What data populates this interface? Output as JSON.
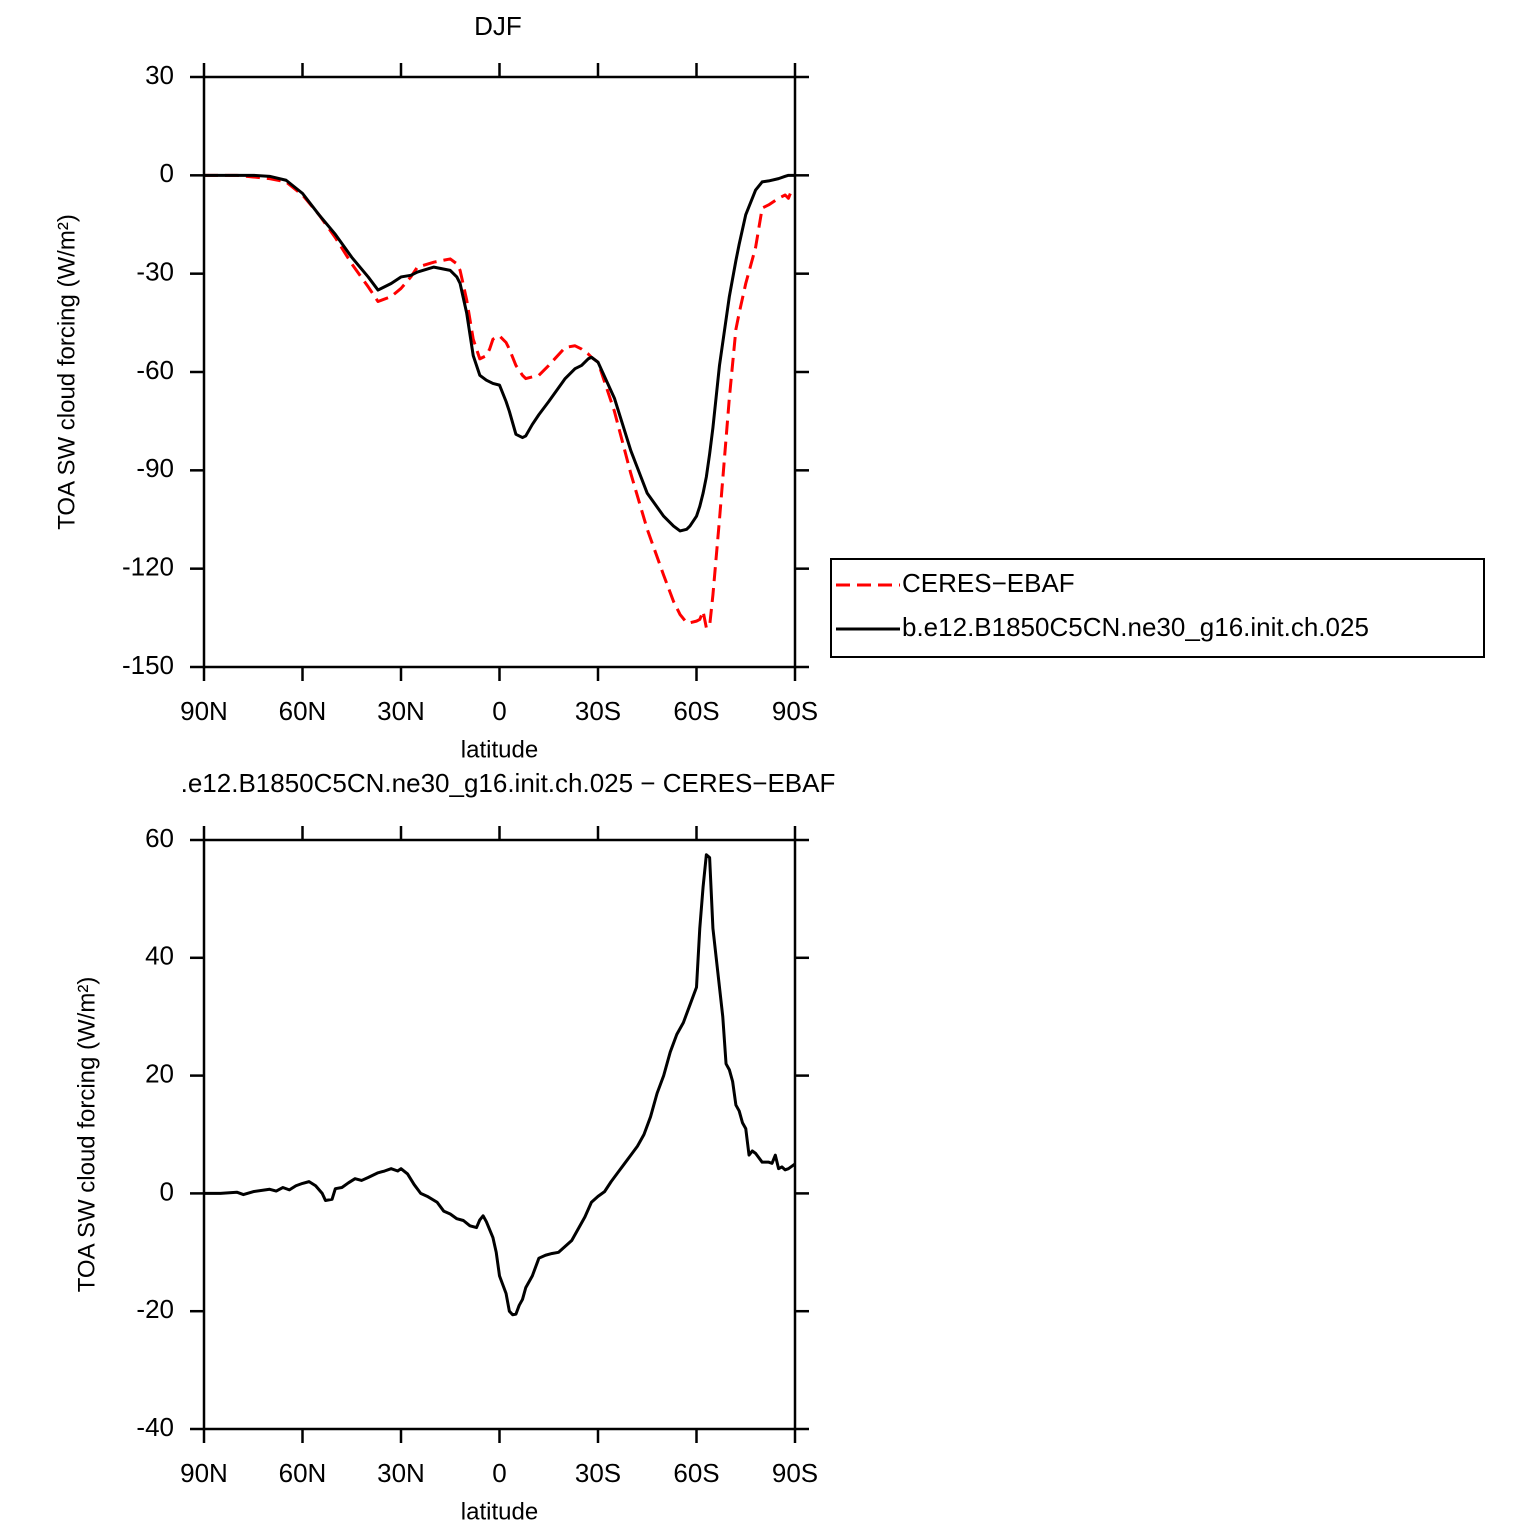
{
  "chart_data": [
    {
      "type": "line",
      "title": "DJF",
      "xlabel": "latitude",
      "ylabel": "TOA SW cloud forcing (W/m²)",
      "xlim": [
        90,
        -90
      ],
      "xticks": [
        {
          "value": 90,
          "label": "90N"
        },
        {
          "value": 60,
          "label": "60N"
        },
        {
          "value": 30,
          "label": "30N"
        },
        0,
        {
          "value": -30,
          "label": "30S"
        },
        {
          "value": -60,
          "label": "60S"
        },
        {
          "value": -90,
          "label": "90S"
        }
      ],
      "ylim": [
        -150,
        30
      ],
      "yticks": [
        -150,
        -120,
        -90,
        -60,
        -30,
        0,
        30
      ],
      "legend": "right",
      "x": [
        90,
        80,
        75,
        70,
        65,
        60,
        55,
        50,
        45,
        40,
        37,
        33,
        30,
        27,
        25,
        20,
        15,
        13,
        12,
        10,
        8,
        6,
        4,
        3,
        2,
        0,
        -2,
        -3,
        -5,
        -7,
        -8,
        -10,
        -12,
        -15,
        -20,
        -23,
        -25,
        -27,
        -28,
        -30,
        -35,
        -40,
        -45,
        -50,
        -53,
        -55,
        -57,
        -58,
        -60,
        -61,
        -62,
        -63,
        -64,
        -65,
        -67,
        -70,
        -72,
        -73,
        -75,
        -78,
        -80,
        -82,
        -85,
        -87,
        -88,
        -89,
        -90
      ],
      "series": [
        {
          "name": "CERES−EBAF",
          "color": "#ff0000",
          "dash": "dashed",
          "values": [
            0,
            0,
            -0.5,
            -1,
            -2,
            -6,
            -12,
            -19,
            -27,
            -34,
            -38.5,
            -37,
            -34.5,
            -31,
            -28,
            -26.5,
            -25.5,
            -27,
            -29,
            -38,
            -50,
            -56,
            -55,
            -53,
            -50,
            -49,
            -51,
            -53,
            -58,
            -61,
            -62,
            -61.5,
            -61,
            -58,
            -52.5,
            -52,
            -53,
            -54.5,
            -55.5,
            -57,
            -72,
            -91,
            -108,
            -122,
            -130,
            -134,
            -136.5,
            -136.5,
            -136,
            -135.5,
            -133,
            -138,
            -137.5,
            -128,
            -105,
            -68,
            -47,
            -42,
            -33,
            -22,
            -10,
            -9,
            -7,
            -6,
            -7,
            -4.5,
            -5
          ]
        },
        {
          "name": "b.e12.B1850C5CN.ne30_g16.init.ch.025",
          "color": "#000000",
          "dash": "solid",
          "values": [
            0,
            0,
            0,
            -0.3,
            -1.5,
            -5.5,
            -12,
            -18,
            -25,
            -31,
            -35,
            -33,
            -31,
            -30.5,
            -29.5,
            -28,
            -29,
            -31,
            -33,
            -42,
            -55,
            -61,
            -62.5,
            -63,
            -63.5,
            -64,
            -69,
            -72,
            -79,
            -80,
            -79.5,
            -76,
            -73,
            -69,
            -62,
            -59,
            -58,
            -56,
            -55.5,
            -57,
            -68,
            -84,
            -97,
            -104,
            -107,
            -108.5,
            -108,
            -107,
            -104,
            -101,
            -97,
            -92,
            -85,
            -77,
            -58,
            -37,
            -26,
            -21,
            -12,
            -4.5,
            -2,
            -1.7,
            -1,
            -0.3,
            0,
            0,
            0
          ]
        }
      ]
    },
    {
      "type": "line",
      "title": ".e12.B1850C5CN.ne30_g16.init.ch.025 − CERES−EBAF",
      "xlabel": "latitude",
      "ylabel": "TOA SW cloud forcing (W/m²)",
      "xlim": [
        90,
        -90
      ],
      "xticks": [
        {
          "value": 90,
          "label": "90N"
        },
        {
          "value": 60,
          "label": "60N"
        },
        {
          "value": 30,
          "label": "30N"
        },
        0,
        {
          "value": -30,
          "label": "30S"
        },
        {
          "value": -60,
          "label": "60S"
        },
        {
          "value": -90,
          "label": "90S"
        }
      ],
      "ylim": [
        -40,
        60
      ],
      "yticks": [
        -40,
        -20,
        0,
        20,
        40,
        60
      ],
      "color": "#000000",
      "x": [
        90,
        85,
        80,
        78,
        75,
        70,
        68,
        66,
        64,
        62,
        60,
        58,
        56,
        54,
        53,
        51,
        50,
        48,
        46,
        44,
        42,
        40,
        37,
        35,
        33,
        31,
        30,
        28,
        26,
        24,
        22,
        19,
        17,
        15,
        13,
        11,
        9,
        7,
        6,
        5,
        4,
        2,
        1,
        0,
        -2,
        -3,
        -4,
        -5,
        -6,
        -7,
        -8,
        -10,
        -12,
        -14,
        -16,
        -18,
        -20,
        -22,
        -24,
        -26,
        -28,
        -30,
        -32,
        -34,
        -36,
        -38,
        -40,
        -42,
        -44,
        -46,
        -48,
        -50,
        -52,
        -54,
        -56,
        -58,
        -60,
        -61,
        -62,
        -63,
        -64,
        -65,
        -66,
        -67,
        -68,
        -69,
        -70,
        -71,
        -72,
        -73,
        -74,
        -75,
        -76,
        -77,
        -78,
        -80,
        -82,
        -83,
        -84,
        -85,
        -86,
        -87,
        -88,
        -90
      ],
      "values": [
        0,
        0,
        0.2,
        -0.2,
        0.3,
        0.7,
        0.4,
        1,
        0.6,
        1.3,
        1.7,
        2,
        1.3,
        0,
        -1.2,
        -1,
        0.8,
        1,
        1.8,
        2.5,
        2.2,
        2.7,
        3.5,
        3.8,
        4.2,
        3.8,
        4.2,
        3.3,
        1.5,
        0,
        -0.5,
        -1.5,
        -3,
        -3.5,
        -4.3,
        -4.6,
        -5.5,
        -5.8,
        -4.5,
        -3.8,
        -4.8,
        -7.5,
        -10,
        -14,
        -17,
        -20,
        -20.6,
        -20.5,
        -19,
        -18,
        -16,
        -14,
        -11,
        -10.5,
        -10.2,
        -10,
        -9,
        -8,
        -6,
        -4,
        -1.5,
        -0.5,
        0.3,
        2,
        3.5,
        5,
        6.5,
        8,
        10,
        13,
        17,
        20,
        24,
        27,
        29,
        32,
        35,
        45,
        52,
        57.5,
        57,
        45,
        40,
        35,
        30,
        22,
        21,
        19,
        15,
        14,
        12,
        11,
        6.5,
        7.2,
        6.8,
        5.3,
        5.3,
        5.1,
        6.5,
        4.2,
        4.5,
        4,
        4.2,
        5
      ]
    }
  ]
}
